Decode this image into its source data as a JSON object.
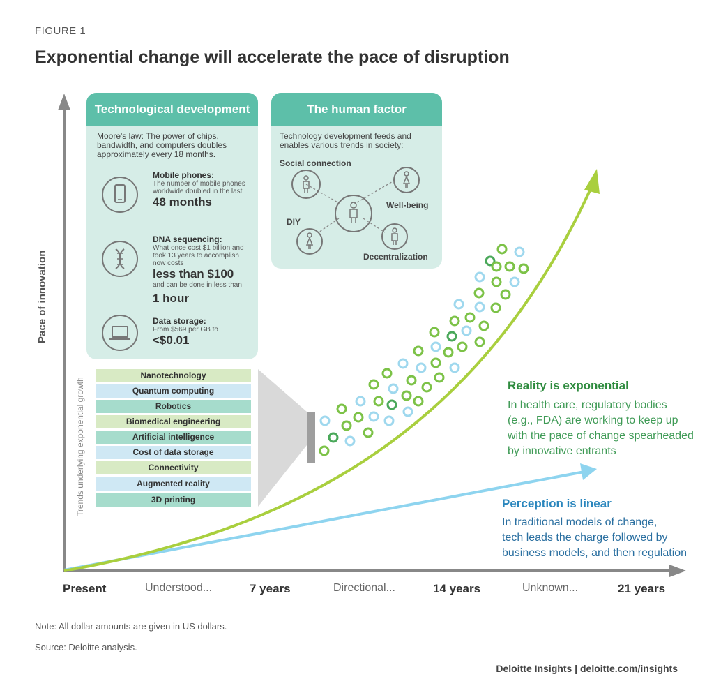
{
  "figure_label": "FIGURE 1",
  "title": "Exponential change will accelerate the pace of disruption",
  "y_axis_label": "Pace of innovation",
  "x_axis_labels": [
    {
      "text": "Present",
      "style": "strong"
    },
    {
      "text": "Understood...",
      "style": "light"
    },
    {
      "text": "7 years",
      "style": "strong"
    },
    {
      "text": "Directional...",
      "style": "light"
    },
    {
      "text": "14 years",
      "style": "strong"
    },
    {
      "text": "Unknown...",
      "style": "light"
    },
    {
      "text": "21 years",
      "style": "strong"
    }
  ],
  "tech_box": {
    "title": "Technological development",
    "intro": "Moore's law: The power of chips, bandwidth, and computers doubles approximately every 18 months.",
    "mobile": {
      "icon": "mobile-phone-icon",
      "title": "Mobile phones:",
      "text": "The number of mobile phones worldwide doubled in the last",
      "value": "48 months"
    },
    "dna": {
      "icon": "dna-icon",
      "title": "DNA sequencing:",
      "text": "What once cost $1 billion and took 13 years to accomplish now costs",
      "value": "less than $100",
      "text2": "and can be done in less than",
      "value2": "1 hour"
    },
    "storage": {
      "icon": "laptop-icon",
      "title": "Data storage:",
      "text": "From $569 per GB to",
      "value": "<$0.01"
    }
  },
  "human_box": {
    "title": "The human factor",
    "intro": "Technology development feeds and enables various trends in society:",
    "nodes": [
      "Social connection",
      "Well-being",
      "DIY",
      "Decentralization"
    ]
  },
  "trends_label": "Trends underlying exponential growth",
  "trends": [
    {
      "label": "Nanotechnology",
      "color": "#d8eac4"
    },
    {
      "label": "Quantum computing",
      "color": "#cfe8f4"
    },
    {
      "label": "Robotics",
      "color": "#a6dccc"
    },
    {
      "label": "Biomedical engineering",
      "color": "#d8eac4"
    },
    {
      "label": "Artificial intelligence",
      "color": "#a6dccc"
    },
    {
      "label": "Cost of data storage",
      "color": "#cfe8f4"
    },
    {
      "label": "Connectivity",
      "color": "#d8eac4"
    },
    {
      "label": "Augmented reality",
      "color": "#cfe8f4"
    },
    {
      "label": "3D printing",
      "color": "#a6dccc"
    }
  ],
  "reality": {
    "heading": "Reality is exponential",
    "lines": [
      "In health care, regulatory bodies",
      "(e.g., FDA) are working to keep up",
      "with the pace of change spearheaded",
      "by innovative entrants"
    ],
    "color": "#2e8b3e",
    "text_color": "#3e9a55"
  },
  "perception": {
    "heading": "Perception is linear",
    "lines": [
      "In traditional models of change,",
      "tech leads the charge followed by",
      "business models, and then regulation"
    ],
    "color": "#2a86bd",
    "text_color": "#2a6fa0"
  },
  "colors": {
    "exponential_curve": "#a9cf3e",
    "linear_line": "#8ed4ef",
    "teal": "#5dbfa9",
    "circle_green": "#7cc247",
    "circle_dark_green": "#4aa85a",
    "circle_blue": "#9fd8ee",
    "axis": "#888888"
  },
  "note": "Note: All dollar amounts are given in US dollars.",
  "source": "Source: Deloitte analysis.",
  "credit": "Deloitte Insights | deloitte.com/insights"
}
